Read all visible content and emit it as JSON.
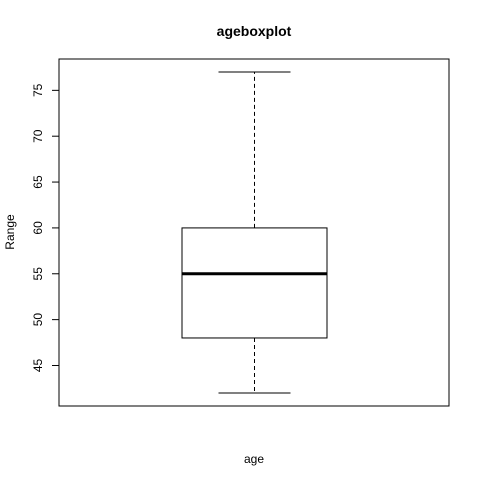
{
  "chart_data": {
    "type": "boxplot",
    "title": "ageboxplot",
    "xlabel": "age",
    "ylabel": "Range",
    "categories": [
      "age"
    ],
    "series": [
      {
        "whisker_low": 42,
        "q1": 48,
        "median": 55,
        "q3": 60,
        "whisker_high": 77
      }
    ],
    "yticks": [
      45,
      50,
      55,
      60,
      65,
      70,
      75
    ],
    "ylim": [
      41,
      78
    ],
    "grid": false,
    "colors": {
      "box_fill": "#ffffff",
      "stroke": "#000000",
      "background": "#ffffff"
    }
  }
}
